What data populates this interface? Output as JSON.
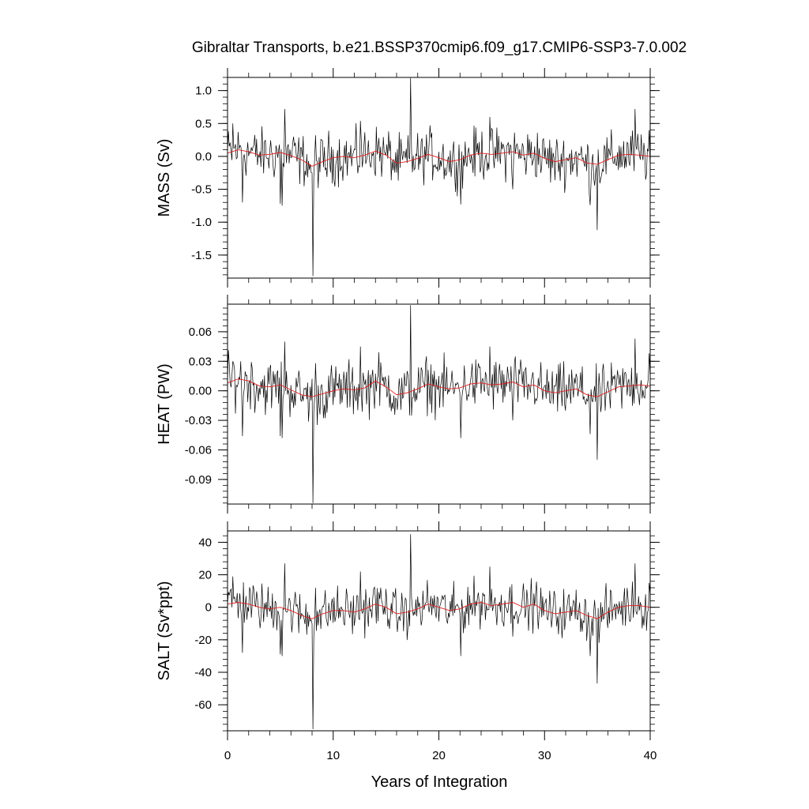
{
  "title": "Gibraltar Transports, b.e21.BSSP370cmip6.f09_g17.CMIP6-SSP3-7.0.002",
  "xlabel": "Years of Integration",
  "colors": {
    "monthly": "#000000",
    "smoothed": "#e41a1c",
    "frame": "#000000"
  },
  "chart_data": [
    {
      "type": "line",
      "ylabel": "MASS (Sv)",
      "xlim": [
        0,
        40
      ],
      "ylim": [
        -1.85,
        1.2
      ],
      "yticks": [
        1.0,
        0.5,
        0.0,
        -0.5,
        -1.0,
        -1.5
      ],
      "ytick_labels": [
        "1.0",
        "0.5",
        "0.0",
        "-0.5",
        "-1.0",
        "-1.5"
      ],
      "xticks": [
        0,
        10,
        20,
        30,
        40
      ],
      "xtick_labels": [],
      "scale": 0.34,
      "amp_min": 1.0,
      "series": [
        {
          "name": "",
          "role": "monthly",
          "x_step": 0.0833,
          "spikes": [
            {
              "x": 0.5,
              "y": 0.5
            },
            {
              "x": 1.4,
              "y": -0.7
            },
            {
              "x": 5.0,
              "y": -0.72
            },
            {
              "x": 5.4,
              "y": 0.72
            },
            {
              "x": 5.2,
              "y": -0.75
            },
            {
              "x": 8.05,
              "y": -1.82
            },
            {
              "x": 8.3,
              "y": 0.32
            },
            {
              "x": 12.6,
              "y": 0.54
            },
            {
              "x": 17.3,
              "y": 1.19
            },
            {
              "x": 22.1,
              "y": -0.73
            },
            {
              "x": 24.8,
              "y": 0.6
            },
            {
              "x": 27.0,
              "y": -0.5
            },
            {
              "x": 34.3,
              "y": -0.74
            },
            {
              "x": 35.0,
              "y": -1.12
            },
            {
              "x": 38.6,
              "y": 0.72
            },
            {
              "x": 39.9,
              "y": 0.4
            }
          ]
        },
        {
          "name": "",
          "role": "smoothed",
          "y": [
            0.05,
            0.1,
            0.07,
            0.02,
            0.03,
            0.06,
            0.01,
            -0.05,
            -0.15,
            -0.08,
            -0.02,
            0.0,
            -0.02,
            0.02,
            0.08,
            0.02,
            -0.1,
            -0.08,
            -0.03,
            0.03,
            -0.02,
            -0.08,
            -0.05,
            0.02,
            0.05,
            0.03,
            0.05,
            0.07,
            0.02,
            0.05,
            -0.03,
            -0.08,
            -0.05,
            -0.02,
            -0.1,
            -0.12,
            -0.05,
            0.02,
            0.03,
            0.02,
            0.0
          ]
        }
      ]
    },
    {
      "type": "line",
      "ylabel": "HEAT (PW)",
      "xlim": [
        0,
        40
      ],
      "ylim": [
        -0.115,
        0.088
      ],
      "yticks": [
        0.06,
        0.03,
        0.0,
        -0.03,
        -0.06,
        -0.09
      ],
      "ytick_labels": [
        "0.06",
        "0.03",
        "0.00",
        "-0.03",
        "-0.06",
        "-0.09"
      ],
      "xticks": [
        0,
        10,
        20,
        30,
        40
      ],
      "xtick_labels": [],
      "scale": 0.0235,
      "amp_min": 0.0,
      "series": [
        {
          "name": "",
          "role": "monthly",
          "x_step": 0.0833,
          "spikes": [
            {
              "x": 0.5,
              "y": 0.03
            },
            {
              "x": 1.4,
              "y": -0.046
            },
            {
              "x": 5.0,
              "y": -0.046
            },
            {
              "x": 5.4,
              "y": 0.05
            },
            {
              "x": 5.2,
              "y": -0.048
            },
            {
              "x": 8.05,
              "y": -0.114
            },
            {
              "x": 8.3,
              "y": 0.028
            },
            {
              "x": 12.6,
              "y": 0.045
            },
            {
              "x": 17.3,
              "y": 0.087
            },
            {
              "x": 22.1,
              "y": -0.048
            },
            {
              "x": 24.8,
              "y": 0.045
            },
            {
              "x": 27.0,
              "y": -0.03
            },
            {
              "x": 34.3,
              "y": -0.044
            },
            {
              "x": 35.0,
              "y": -0.07
            },
            {
              "x": 38.6,
              "y": 0.053
            },
            {
              "x": 39.9,
              "y": 0.038
            }
          ]
        },
        {
          "name": "",
          "role": "smoothed",
          "y": [
            0.008,
            0.012,
            0.01,
            0.005,
            0.004,
            0.006,
            0.001,
            -0.004,
            -0.006,
            -0.003,
            0.0,
            0.002,
            0.001,
            0.003,
            0.01,
            0.004,
            -0.004,
            -0.002,
            0.002,
            0.007,
            0.004,
            0.002,
            0.003,
            0.007,
            0.008,
            0.006,
            0.007,
            0.009,
            0.004,
            0.006,
            0.0,
            -0.002,
            0.0,
            0.002,
            -0.004,
            -0.006,
            -0.001,
            0.004,
            0.005,
            0.006,
            0.005
          ]
        }
      ]
    },
    {
      "type": "line",
      "ylabel": "SALT (Sv*ppt)",
      "xlim": [
        0,
        40
      ],
      "ylim": [
        -76,
        47
      ],
      "yticks": [
        40,
        20,
        0,
        -20,
        -40,
        -60
      ],
      "ytick_labels": [
        "40",
        "20",
        "0",
        "-20",
        "-40",
        "-60"
      ],
      "xticks": [
        0,
        10,
        20,
        30,
        40
      ],
      "xtick_labels": [
        "0",
        "10",
        "20",
        "30",
        "40"
      ],
      "scale": 12.5,
      "amp_min": 0.0,
      "series": [
        {
          "name": "",
          "role": "monthly",
          "x_step": 0.0833,
          "spikes": [
            {
              "x": 0.5,
              "y": 19
            },
            {
              "x": 1.4,
              "y": -28
            },
            {
              "x": 5.0,
              "y": -29
            },
            {
              "x": 5.4,
              "y": 27
            },
            {
              "x": 5.2,
              "y": -30
            },
            {
              "x": 8.05,
              "y": -75
            },
            {
              "x": 8.3,
              "y": 12
            },
            {
              "x": 12.6,
              "y": 22
            },
            {
              "x": 17.3,
              "y": 45
            },
            {
              "x": 22.1,
              "y": -30
            },
            {
              "x": 24.8,
              "y": 25
            },
            {
              "x": 27.0,
              "y": -18
            },
            {
              "x": 34.3,
              "y": -30
            },
            {
              "x": 35.0,
              "y": -47
            },
            {
              "x": 38.6,
              "y": 27
            },
            {
              "x": 39.9,
              "y": 15
            }
          ]
        },
        {
          "name": "",
          "role": "smoothed",
          "y": [
            2,
            3,
            2,
            0,
            -1,
            0,
            -2,
            -5,
            -7,
            -4,
            -2,
            -2,
            -3,
            -1,
            2,
            0,
            -4,
            -3,
            -1,
            2,
            0,
            -2,
            -1,
            2,
            3,
            1,
            2,
            3,
            0,
            2,
            -2,
            -4,
            -3,
            -2,
            -5,
            -7,
            -3,
            0,
            1,
            1,
            0
          ]
        }
      ]
    }
  ]
}
